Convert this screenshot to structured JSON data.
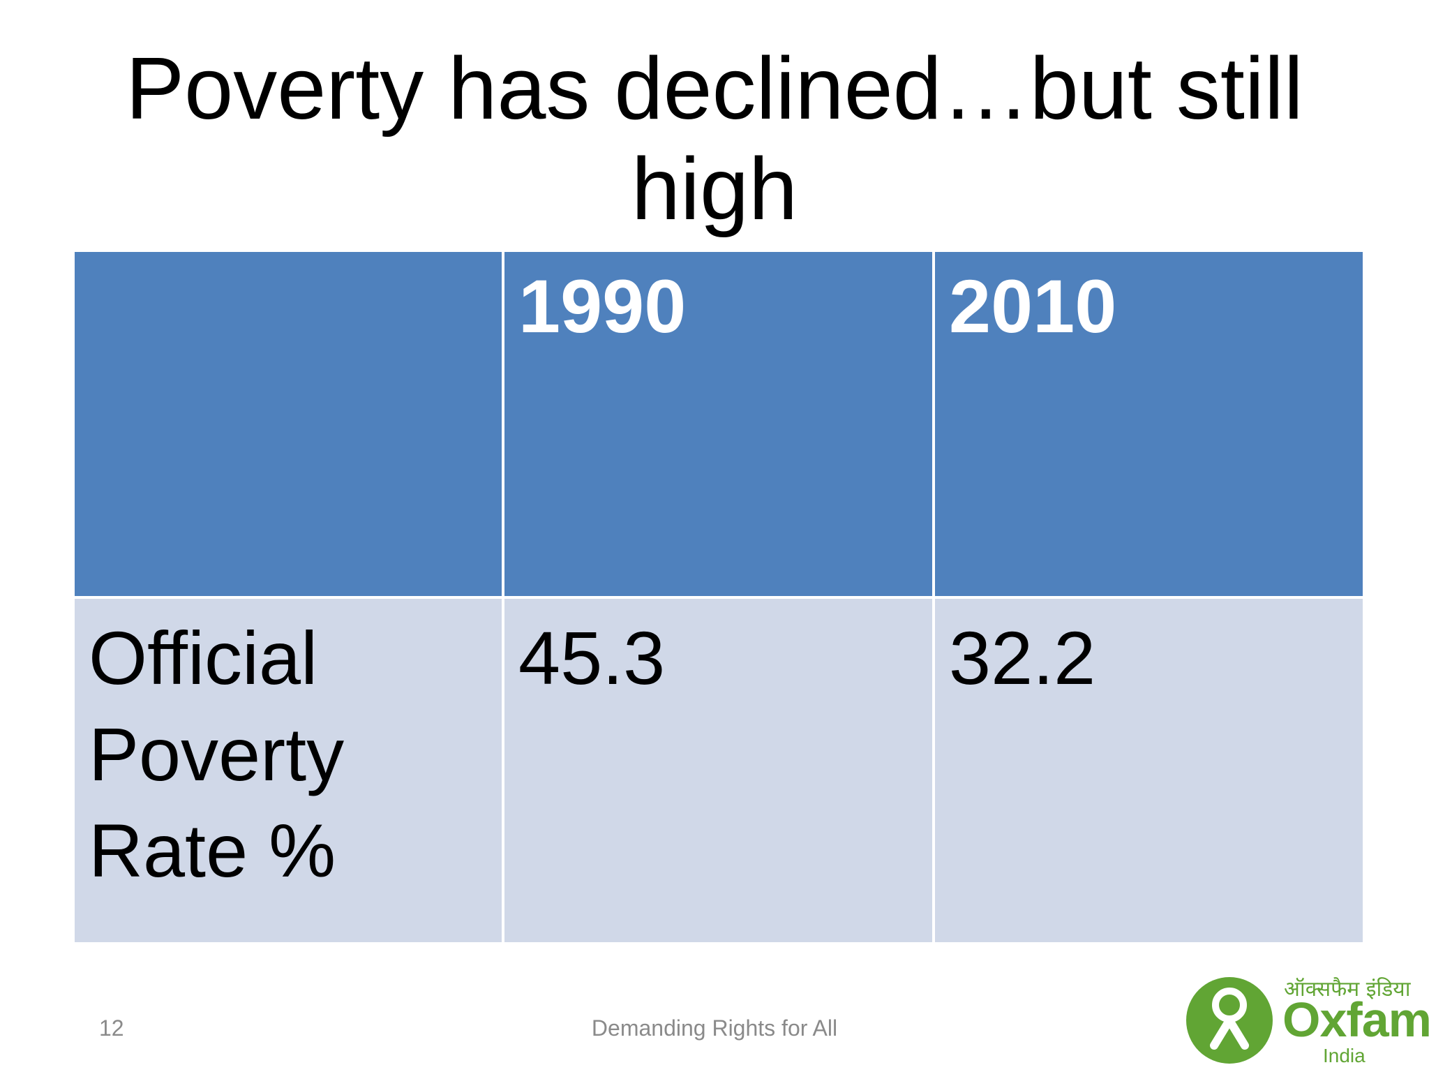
{
  "slide": {
    "title": "Poverty has declined…but still high",
    "page_number": "12",
    "footer": "Demanding Rights for All"
  },
  "table": {
    "header": [
      "",
      "1990",
      "2010"
    ],
    "rows": [
      [
        "Official Poverty Rate %",
        "45.3",
        "32.2"
      ]
    ]
  },
  "logo": {
    "hindi": "ऑक्सफैम इंडिया",
    "brand": "Oxfam",
    "sub": "India"
  },
  "colors": {
    "header_fill": "#4f81bd",
    "body_fill": "#d0d8e8",
    "logo_green": "#61a534"
  }
}
